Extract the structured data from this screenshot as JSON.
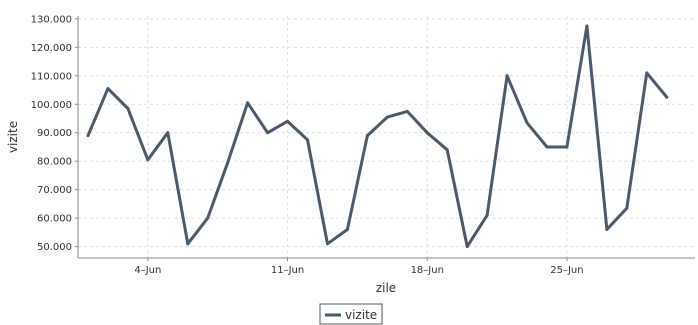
{
  "chart_data": {
    "type": "line",
    "title": "",
    "xlabel": "zile",
    "ylabel": "vizite",
    "ylim": [
      46000,
      131000
    ],
    "y_ticks": [
      50000,
      60000,
      70000,
      80000,
      90000,
      100000,
      110000,
      120000,
      130000
    ],
    "y_tick_labels": [
      "50.000",
      "60.000",
      "70.000",
      "80.000",
      "90.000",
      "100.000",
      "110.000",
      "120.000",
      "130.000"
    ],
    "x_tick_labels": [
      "4–Jun",
      "11–Jun",
      "18–Jun",
      "25–Jun"
    ],
    "x_tick_dates": [
      "2017-06-04",
      "2017-06-11",
      "2017-06-18",
      "2017-06-25"
    ],
    "x_range": [
      "2017-05-31T12:00",
      "2017-07-01T10:00"
    ],
    "grid": true,
    "legend_position": "bottom-center",
    "series": [
      {
        "name": "vizite",
        "color": "#4a5a6c",
        "x": [
          "2017-06-01",
          "2017-06-02",
          "2017-06-03",
          "2017-06-04",
          "2017-06-05",
          "2017-06-06",
          "2017-06-07",
          "2017-06-08",
          "2017-06-09",
          "2017-06-10",
          "2017-06-11",
          "2017-06-12",
          "2017-06-13",
          "2017-06-14",
          "2017-06-15",
          "2017-06-16",
          "2017-06-17",
          "2017-06-18",
          "2017-06-19",
          "2017-06-20",
          "2017-06-21",
          "2017-06-22",
          "2017-06-23",
          "2017-06-24",
          "2017-06-25",
          "2017-06-26",
          "2017-06-27",
          "2017-06-28",
          "2017-06-29",
          "2017-06-30"
        ],
        "values": [
          89000,
          105500,
          98500,
          80500,
          90000,
          51000,
          60000,
          79500,
          100500,
          90000,
          94000,
          87500,
          51000,
          56000,
          89000,
          95500,
          97500,
          90000,
          84000,
          50000,
          61000,
          110000,
          93500,
          85000,
          85000,
          127500,
          56000,
          63500,
          111000,
          102500
        ]
      }
    ]
  }
}
